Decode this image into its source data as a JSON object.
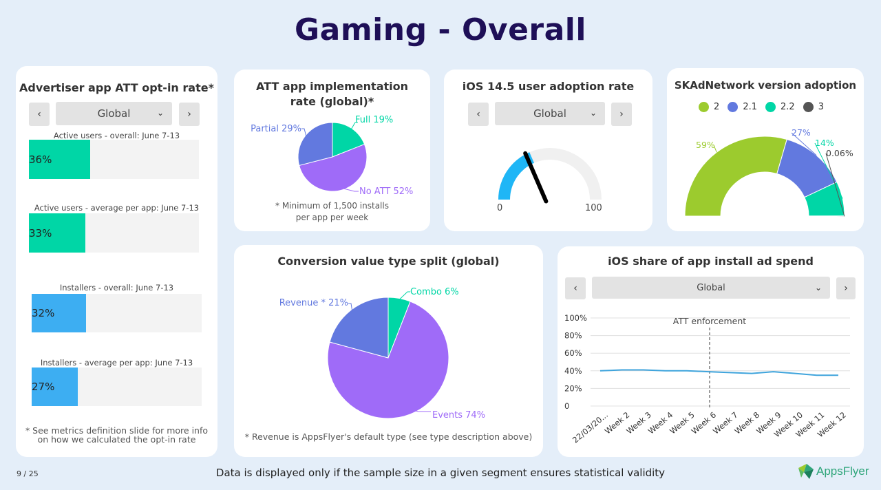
{
  "page": {
    "title": "Gaming - Overall",
    "page_number": "9 / 25",
    "footer_note": "Data is displayed only if the sample size in a given segment ensures statistical validity",
    "logo_text": "AppsFlyer"
  },
  "optin": {
    "title": "Advertiser app ATT opt-in rate*",
    "select_value": "Global",
    "bars": [
      {
        "label": "Active users - overall: June 7-13",
        "value": 36,
        "value_label": "36%",
        "color": "#00d6a6"
      },
      {
        "label": "Active users - average per app: June 7-13",
        "value": 33,
        "value_label": "33%",
        "color": "#00d6a6"
      },
      {
        "label": "Installers - overall: June 7-13",
        "value": 32,
        "value_label": "32%",
        "color": "#3daef2"
      },
      {
        "label": "Installers - average per app: June 7-13",
        "value": 27,
        "value_label": "27%",
        "color": "#3daef2"
      }
    ],
    "note_line1": "* See metrics definition slide for more info",
    "note_line2": "on how we calculated the opt-in rate"
  },
  "att_impl": {
    "title_line1": "ATT app implementation",
    "title_line2": "rate (global)*",
    "note_line1": "* Minimum of 1,500 installs",
    "note_line2": "per app per week"
  },
  "ios_adoption": {
    "title": "iOS 14.5 user adoption rate",
    "select_value": "Global",
    "min_label": "0",
    "max_label": "100"
  },
  "skad": {
    "title": "SKAdNetwork version adoption"
  },
  "conversion": {
    "title": "Conversion value type split (global)",
    "note": "* Revenue is AppsFlyer's default type (see type description above)"
  },
  "ios_share": {
    "title": "iOS share of app install ad spend",
    "select_value": "Global"
  },
  "chart_data": [
    {
      "id": "att_implementation",
      "type": "pie",
      "title": "ATT app implementation rate (global)*",
      "slices": [
        {
          "name": "Full",
          "value": 19,
          "label": "Full 19%",
          "color": "#00d6a6"
        },
        {
          "name": "No ATT",
          "value": 52,
          "label": "No ATT 52%",
          "color": "#9f6bf8"
        },
        {
          "name": "Partial",
          "value": 29,
          "label": "Partial 29%",
          "color": "#6279df"
        }
      ]
    },
    {
      "id": "ios_adoption_gauge",
      "type": "gauge",
      "title": "iOS 14.5 user adoption rate",
      "value": 37,
      "min": 0,
      "max": 100,
      "fill_color": "#1fb6f6",
      "track_color": "#f0f0f0",
      "needle_color": "#000000"
    },
    {
      "id": "skad_version",
      "type": "pie",
      "title": "SKAdNetwork version adoption",
      "legend": [
        {
          "name": "2",
          "color": "#9ccb2e"
        },
        {
          "name": "2.1",
          "color": "#6279df"
        },
        {
          "name": "2.2",
          "color": "#00d6a6"
        },
        {
          "name": "3",
          "color": "#555555"
        }
      ],
      "slices": [
        {
          "name": "2",
          "value": 59,
          "label": "59%",
          "color": "#9ccb2e"
        },
        {
          "name": "2.1",
          "value": 27,
          "label": "27%",
          "color": "#6279df"
        },
        {
          "name": "2.2",
          "value": 14,
          "label": "14%",
          "color": "#00d6a6"
        },
        {
          "name": "3",
          "value": 0.06,
          "label": "0.06%",
          "color": "#555555"
        }
      ]
    },
    {
      "id": "conversion_split",
      "type": "pie",
      "title": "Conversion value type split (global)",
      "slices": [
        {
          "name": "Combo",
          "value": 6,
          "label": "Combo 6%",
          "color": "#00d6a6"
        },
        {
          "name": "Events",
          "value": 74,
          "label": "Events 74%",
          "color": "#9f6bf8"
        },
        {
          "name": "Revenue *",
          "value": 21,
          "label": "Revenue * 21%",
          "color": "#6279df"
        }
      ]
    },
    {
      "id": "ios_share_spend",
      "type": "line",
      "title": "iOS share of app install ad spend",
      "categories": [
        "22/03/20...",
        "Week 2",
        "Week 3",
        "Week 4",
        "Week 5",
        "Week 6",
        "Week 7",
        "Week 8",
        "Week 9",
        "Week 10",
        "Week 11",
        "Week 12"
      ],
      "series": [
        {
          "values": [
            40,
            41,
            41,
            40,
            40,
            39,
            38,
            37,
            39,
            37,
            35,
            35
          ],
          "color": "#3fa4dc"
        }
      ],
      "yticks": [
        "0",
        "20%",
        "40%",
        "60%",
        "80%",
        "100%"
      ],
      "ylim": [
        0,
        100
      ],
      "annotation": {
        "text": "ATT enforcement",
        "position": 5.5
      },
      "grid": true
    }
  ]
}
